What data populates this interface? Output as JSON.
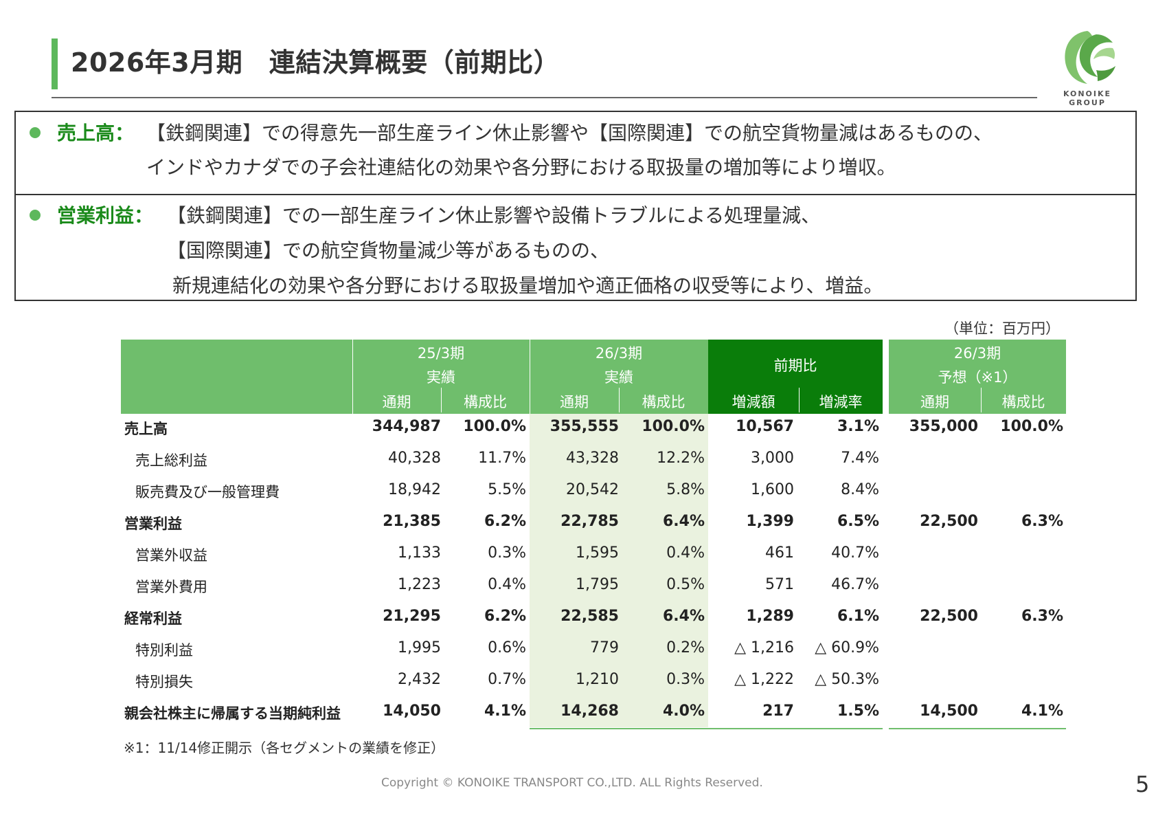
{
  "title": "2026年3月期　連結決算概要（前期比）",
  "logo": {
    "line1": "KONOIKE",
    "line2": "GROUP"
  },
  "summary": {
    "sales": {
      "label": "売上高：",
      "lines": [
        "【鉄鋼関連】での得意先一部生産ライン休止影響や【国際関連】での航空貨物量減はあるものの、",
        "インドやカナダでの子会社連結化の効果や各分野における取扱量の増加等により増収。"
      ]
    },
    "operating_profit": {
      "label": "営業利益：",
      "lines": [
        "【鉄鋼関連】での一部生産ライン休止影響や設備トラブルによる処理量減、",
        "【国際関連】での航空貨物量減少等があるものの、",
        "新規連結化の効果や各分野における取扱量増加や適正価格の収受等により、増益。"
      ]
    }
  },
  "unit": "（単位：百万円）",
  "table": {
    "headers": {
      "g1": {
        "line1": "25/3期",
        "line2": "実績"
      },
      "g2": {
        "line1": "26/3期",
        "line2": "実績"
      },
      "g3": {
        "line1": "前期比"
      },
      "g4": {
        "line1": "26/3期",
        "line2": "予想（※1）"
      },
      "sub": [
        "通期",
        "構成比",
        "通期",
        "構成比",
        "増減額",
        "増減率",
        "通期",
        "構成比"
      ]
    },
    "rows": [
      {
        "label": "売上高",
        "bold": true,
        "indent": false,
        "cells": [
          "344,987",
          "100.0%",
          "355,555",
          "100.0%",
          "10,567",
          "3.1%",
          "355,000",
          "100.0%"
        ]
      },
      {
        "label": "売上総利益",
        "bold": false,
        "indent": true,
        "cells": [
          "40,328",
          "11.7%",
          "43,328",
          "12.2%",
          "3,000",
          "7.4%",
          "",
          ""
        ]
      },
      {
        "label": "販売費及び一般管理費",
        "bold": false,
        "indent": true,
        "cells": [
          "18,942",
          "5.5%",
          "20,542",
          "5.8%",
          "1,600",
          "8.4%",
          "",
          ""
        ]
      },
      {
        "label": "営業利益",
        "bold": true,
        "indent": false,
        "cells": [
          "21,385",
          "6.2%",
          "22,785",
          "6.4%",
          "1,399",
          "6.5%",
          "22,500",
          "6.3%"
        ]
      },
      {
        "label": "営業外収益",
        "bold": false,
        "indent": true,
        "cells": [
          "1,133",
          "0.3%",
          "1,595",
          "0.4%",
          "461",
          "40.7%",
          "",
          ""
        ]
      },
      {
        "label": "営業外費用",
        "bold": false,
        "indent": true,
        "cells": [
          "1,223",
          "0.4%",
          "1,795",
          "0.5%",
          "571",
          "46.7%",
          "",
          ""
        ]
      },
      {
        "label": "経常利益",
        "bold": true,
        "indent": false,
        "cells": [
          "21,295",
          "6.2%",
          "22,585",
          "6.4%",
          "1,289",
          "6.1%",
          "22,500",
          "6.3%"
        ]
      },
      {
        "label": "特別利益",
        "bold": false,
        "indent": true,
        "cells": [
          "1,995",
          "0.6%",
          "779",
          "0.2%",
          "△ 1,216",
          "△ 60.9%",
          "",
          ""
        ]
      },
      {
        "label": "特別損失",
        "bold": false,
        "indent": true,
        "cells": [
          "2,432",
          "0.7%",
          "1,210",
          "0.3%",
          "△ 1,222",
          "△ 50.3%",
          "",
          ""
        ]
      },
      {
        "label": "親会社株主に帰属する当期純利益",
        "bold": true,
        "indent": false,
        "cells": [
          "14,050",
          "4.1%",
          "14,268",
          "4.0%",
          "217",
          "1.5%",
          "14,500",
          "4.1%"
        ]
      }
    ]
  },
  "footnote": "※1：11/14修正開示（各セグメントの業績を修正）",
  "copyright": "Copyright © KONOIKE TRANSPORT CO.,LTD.  ALL Rights Reserved.",
  "page_number": "5"
}
